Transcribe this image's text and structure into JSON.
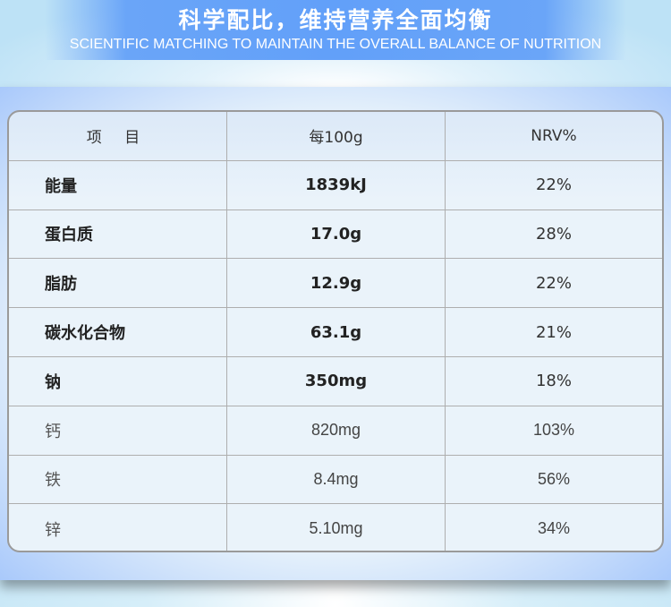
{
  "banner": {
    "title": "科学配比，维持营养全面均衡",
    "subtitle": "SCIENTIFIC MATCHING TO MAINTAIN THE OVERALL BALANCE OF NUTRITION"
  },
  "table": {
    "headers": [
      "项 目",
      "每100g",
      "NRV%"
    ],
    "rows": [
      {
        "item": "能量",
        "per100g": "1839kJ",
        "nrv": "22%"
      },
      {
        "item": "蛋白质",
        "per100g": "17.0g",
        "nrv": "28%"
      },
      {
        "item": "脂肪",
        "per100g": "12.9g",
        "nrv": "22%"
      },
      {
        "item": "碳水化合物",
        "per100g": "63.1g",
        "nrv": "21%"
      },
      {
        "item": "钠",
        "per100g": "350mg",
        "nrv": "18%"
      },
      {
        "item": "钙",
        "per100g": "820mg",
        "nrv": "103%"
      },
      {
        "item": "铁",
        "per100g": "8.4mg",
        "nrv": "56%"
      },
      {
        "item": "锌",
        "per100g": "5.10mg",
        "nrv": "34%"
      }
    ]
  },
  "colors": {
    "banner": "#62a0f9",
    "border": "#9a9a9a"
  }
}
